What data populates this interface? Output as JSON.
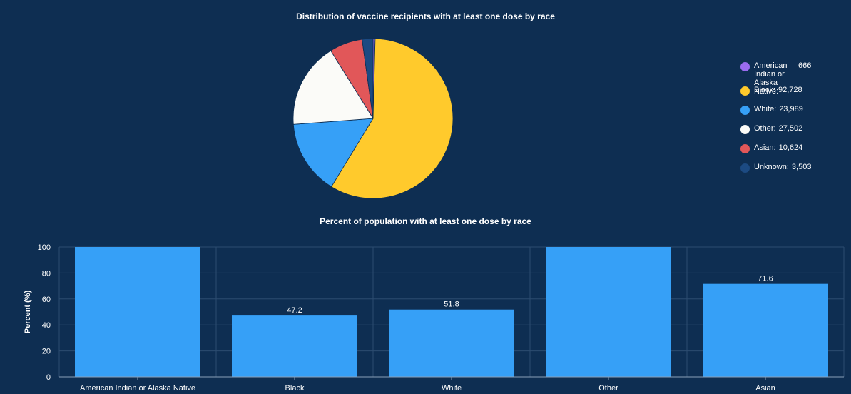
{
  "chart_data": [
    {
      "type": "pie",
      "title": "Distribution of vaccine recipients with at least one dose by race",
      "legend_position": "right",
      "slices": [
        {
          "name": "American Indian or Alaska Native:",
          "value": 666,
          "value_label": "666",
          "color": "#9a6cf0"
        },
        {
          "name": "Black:",
          "value": 92728,
          "value_label": "92,728",
          "color": "#ffca2c"
        },
        {
          "name": "White:",
          "value": 23989,
          "value_label": "23,989",
          "color": "#36a0f7"
        },
        {
          "name": "Other:",
          "value": 27502,
          "value_label": "27,502",
          "color": "#fbfbf8"
        },
        {
          "name": "Asian:",
          "value": 10624,
          "value_label": "10,624",
          "color": "#e15759"
        },
        {
          "name": "Unknown:",
          "value": 3503,
          "value_label": "3,503",
          "color": "#1c4a82"
        }
      ]
    },
    {
      "type": "bar",
      "title": "Percent of population with at least one dose by race",
      "xlabel": "",
      "ylabel": "Percent (%)",
      "ylim": [
        0,
        100
      ],
      "yticks": [
        0,
        20,
        40,
        60,
        80,
        100
      ],
      "grid": true,
      "bar_color": "#36a0f7",
      "categories": [
        "American Indian or Alaska Native",
        "Black",
        "White",
        "Other",
        "Asian"
      ],
      "values": [
        100,
        47.2,
        51.8,
        100,
        71.6
      ],
      "data_labels": [
        "",
        "47.2",
        "51.8",
        "",
        "71.6"
      ]
    }
  ]
}
